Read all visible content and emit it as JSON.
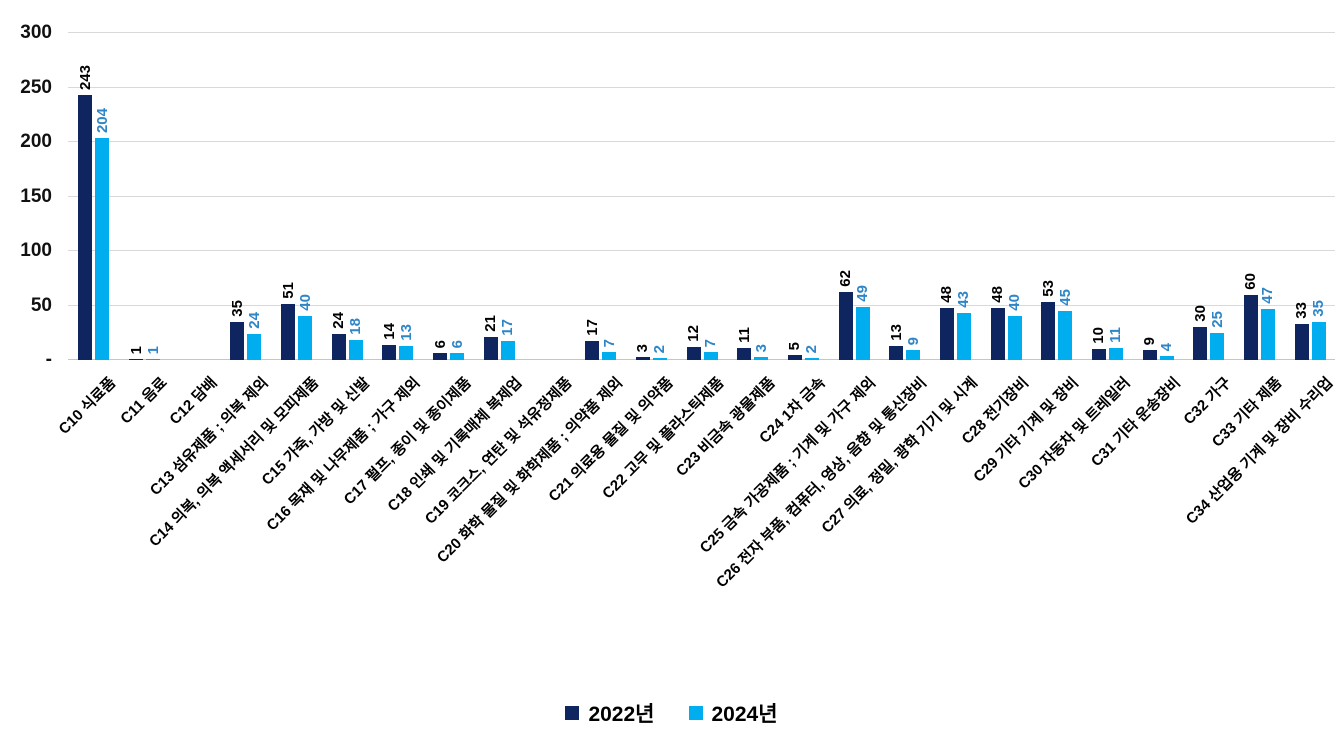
{
  "chart_data": {
    "type": "bar",
    "title": "",
    "categories": [
      "C10 식료품",
      "C11 음료",
      "C12 담배",
      "C13 섬유제품 ; 의복 제외",
      "C14 의복, 의복 액세서리 및 모피제품",
      "C15 가죽, 가방 및 신발",
      "C16 목재 및 나무제품 ; 가구 제외",
      "C17 펄프, 종이 및 종이제품",
      "C18 인쇄 및 기록매체 복제업",
      "C19 코크스, 연탄 및 석유정제품",
      "C20 화학 물질 및 화학제품 ; 의약품 제외",
      "C21 의료용 물질 및 의약품",
      "C22 고무 및 플라스틱제품",
      "C23 비금속 광물제품",
      "C24 1차 금속",
      "C25 금속 가공제품 ; 기계 및 가구 제외",
      "C26 전자 부품, 컴퓨터, 영상, 음향 및 통신장비",
      "C27 의료, 정밀, 광학 기기 및 시계",
      "C28 전기장비",
      "C29 기타 기계 및 장비",
      "C30 자동차 및 트레일러",
      "C31 기타 운송장비",
      "C32 가구",
      "C33 기타 제품",
      "C34 산업용 기계 및 장비 수리업"
    ],
    "series": [
      {
        "name": "2022년",
        "color": "#0E2560",
        "label_color": "#000000",
        "values": [
          243,
          1,
          null,
          35,
          51,
          24,
          14,
          6,
          21,
          null,
          17,
          3,
          12,
          11,
          5,
          62,
          13,
          48,
          48,
          53,
          10,
          9,
          30,
          60,
          33
        ]
      },
      {
        "name": "2024년",
        "color": "#00AEEF",
        "label_color": "#2E86C6",
        "values": [
          204,
          1,
          null,
          24,
          40,
          18,
          13,
          6,
          17,
          null,
          7,
          2,
          7,
          3,
          2,
          49,
          9,
          43,
          40,
          45,
          11,
          4,
          25,
          47,
          35
        ]
      }
    ],
    "y_axis": {
      "min": 0,
      "max": 300,
      "step": 50,
      "tick_labels": [
        "-",
        "50",
        "100",
        "150",
        "200",
        "250",
        "300"
      ]
    },
    "grid": true,
    "gridline_color": "#D9D9D9",
    "legend_position": "bottom",
    "data_labels": "rotated-vertical, outside end"
  }
}
